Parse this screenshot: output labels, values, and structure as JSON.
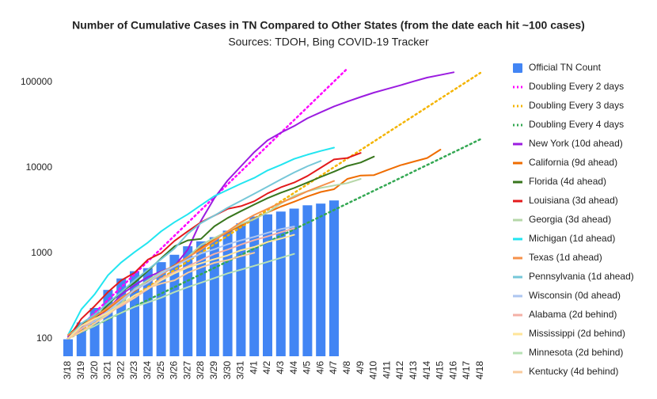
{
  "chart_data": {
    "type": "combo",
    "title": "Number of Cumulative Cases in TN Compared to Other States (from the date each hit ~100 cases)",
    "subtitle": "Sources: TDOH, Bing COVID-19 Tracker",
    "categories": [
      "3/18",
      "3/19",
      "3/20",
      "3/21",
      "3/22",
      "3/23",
      "3/24",
      "3/25",
      "3/26",
      "3/27",
      "3/28",
      "3/29",
      "3/30",
      "3/31",
      "4/1",
      "4/2",
      "4/3",
      "4/4",
      "4/5",
      "4/6",
      "4/7",
      "4/8",
      "4/9",
      "4/10",
      "4/11",
      "4/12",
      "4/13",
      "4/14",
      "4/15",
      "4/16",
      "4/17",
      "4/18"
    ],
    "ylim": [
      62,
      150000
    ],
    "yticks": [
      100,
      1000,
      10000,
      100000
    ],
    "log_scale": true,
    "grid": false,
    "legend": "right",
    "series": [
      {
        "name": "Official TN Count",
        "type": "bar",
        "color": "#4285f4",
        "values": [
          98,
          154,
          228,
          371,
          505,
          615,
          667,
          784,
          957,
          1203,
          1373,
          1537,
          1834,
          2239,
          2683,
          2845,
          3067,
          3321,
          3633,
          3802,
          4138,
          null,
          null,
          null,
          null,
          null,
          null,
          null,
          null,
          null,
          null,
          null
        ]
      },
      {
        "name": "Doubling Every 2 days",
        "type": "line",
        "dotted": true,
        "color": "#ff00ff",
        "values": [
          100,
          141,
          200,
          283,
          400,
          566,
          800,
          1131,
          1600,
          2263,
          3200,
          4525,
          6400,
          9051,
          12800,
          18102,
          25600,
          36204,
          51200,
          72408,
          102400,
          144815,
          null,
          null,
          null,
          null,
          null,
          null,
          null,
          null,
          null,
          null
        ]
      },
      {
        "name": "Doubling Every 3 days",
        "type": "line",
        "dotted": true,
        "color": "#f4b400",
        "values": [
          100,
          126,
          159,
          200,
          252,
          317,
          400,
          504,
          635,
          800,
          1008,
          1270,
          1600,
          2016,
          2540,
          3200,
          4032,
          5080,
          6400,
          8063,
          10159,
          12800,
          16127,
          20319,
          25600,
          32254,
          40637,
          51200,
          64508,
          81275,
          102400,
          129016
        ]
      },
      {
        "name": "Doubling Every 4 days",
        "type": "line",
        "dotted": true,
        "color": "#34a853",
        "values": [
          100,
          119,
          141,
          168,
          200,
          238,
          283,
          336,
          400,
          476,
          566,
          673,
          800,
          951,
          1131,
          1345,
          1600,
          1903,
          2263,
          2691,
          3200,
          3805,
          4525,
          5382,
          6400,
          7611,
          9051,
          10764,
          12800,
          15222,
          18102,
          21527
        ]
      },
      {
        "name": "New York (10d ahead)",
        "type": "line",
        "color": "#9b1ce0",
        "values": [
          105,
          142,
          173,
          220,
          328,
          421,
          525,
          611,
          700,
          1100,
          2400,
          4400,
          7100,
          10400,
          15200,
          20900,
          25700,
          30800,
          37900,
          44600,
          52300,
          59500,
          67300,
          75800,
          83700,
          92400,
          102800,
          113700,
          122000,
          131000,
          null,
          null
        ]
      },
      {
        "name": "California (9d ahead)",
        "type": "line",
        "color": "#ef6c00",
        "values": [
          100,
          140,
          180,
          220,
          290,
          360,
          460,
          590,
          720,
          900,
          1150,
          1450,
          1750,
          2100,
          2550,
          3000,
          3500,
          4000,
          4600,
          5200,
          5600,
          7400,
          8100,
          8200,
          9400,
          10700,
          11800,
          13000,
          16300,
          null,
          null,
          null
        ]
      },
      {
        "name": "Florida (4d ahead)",
        "type": "line",
        "color": "#38761d",
        "values": [
          110,
          150,
          170,
          250,
          350,
          450,
          620,
          870,
          1200,
          1410,
          1470,
          2060,
          2580,
          3100,
          3700,
          4400,
          5100,
          5800,
          6700,
          7800,
          9000,
          10500,
          11500,
          13500,
          null,
          null,
          null,
          null,
          null,
          null,
          null,
          null
        ]
      },
      {
        "name": "Louisiana (3d ahead)",
        "type": "line",
        "color": "#e31a1c",
        "values": [
          100,
          170,
          240,
          350,
          480,
          590,
          840,
          1000,
          1390,
          1800,
          2300,
          2750,
          3300,
          3550,
          4050,
          5000,
          5900,
          6700,
          8000,
          10000,
          12500,
          13000,
          14900,
          null,
          null,
          null,
          null,
          null,
          null,
          null,
          null,
          null
        ]
      },
      {
        "name": "Georgia (3d ahead)",
        "type": "line",
        "color": "#b6d7a8",
        "values": [
          100,
          120,
          150,
          200,
          260,
          380,
          480,
          600,
          700,
          900,
          1250,
          1500,
          1800,
          2200,
          2500,
          3000,
          3800,
          4700,
          5300,
          5800,
          6200,
          6600,
          7400,
          null,
          null,
          null,
          null,
          null,
          null,
          null,
          null,
          null
        ]
      },
      {
        "name": "Michigan (1d ahead)",
        "type": "line",
        "color": "#22e5f0",
        "values": [
          110,
          220,
          330,
          550,
          780,
          1030,
          1330,
          1800,
          2300,
          2850,
          3650,
          4650,
          5500,
          6500,
          7600,
          9300,
          10800,
          12700,
          14200,
          15700,
          17200,
          null,
          null,
          null,
          null,
          null,
          null,
          null,
          null,
          null,
          null,
          null
        ]
      },
      {
        "name": "Texas (1d ahead)",
        "type": "line",
        "color": "#f6914a",
        "values": [
          110,
          140,
          180,
          230,
          300,
          370,
          450,
          560,
          700,
          900,
          1100,
          1400,
          1800,
          2300,
          2800,
          3300,
          3900,
          4500,
          5300,
          6100,
          7000,
          null,
          null,
          null,
          null,
          null,
          null,
          null,
          null,
          null,
          null,
          null
        ]
      },
      {
        "name": "Pennsylvania (1d ahead)",
        "type": "line",
        "color": "#76c7d8",
        "values": [
          100,
          150,
          190,
          260,
          350,
          480,
          640,
          850,
          1130,
          1690,
          2250,
          2750,
          3400,
          4100,
          4950,
          6000,
          7300,
          8800,
          10400,
          12000,
          null,
          null,
          null,
          null,
          null,
          null,
          null,
          null,
          null,
          null,
          null,
          null
        ]
      },
      {
        "name": "Wisconsin (0d ahead)",
        "type": "line",
        "color": "#aec6f0",
        "values": [
          100,
          130,
          160,
          210,
          280,
          370,
          450,
          580,
          700,
          840,
          990,
          1110,
          1270,
          1410,
          1550,
          1730,
          1910,
          2050,
          null,
          null,
          null,
          null,
          null,
          null,
          null,
          null,
          null,
          null,
          null,
          null,
          null,
          null
        ]
      },
      {
        "name": "Alabama (2d behind)",
        "type": "line",
        "color": "#f4b0a6",
        "values": [
          100,
          130,
          170,
          200,
          240,
          300,
          380,
          500,
          600,
          700,
          830,
          980,
          1100,
          1260,
          1420,
          1570,
          1760,
          1950,
          null,
          null,
          null,
          null,
          null,
          null,
          null,
          null,
          null,
          null,
          null,
          null,
          null,
          null
        ]
      },
      {
        "name": "Mississippi (2d behind)",
        "type": "line",
        "color": "#ffe599",
        "values": [
          100,
          140,
          170,
          200,
          250,
          320,
          380,
          480,
          580,
          680,
          760,
          850,
          940,
          1080,
          1180,
          1350,
          1480,
          1640,
          null,
          null,
          null,
          null,
          null,
          null,
          null,
          null,
          null,
          null,
          null,
          null,
          null,
          null
        ]
      },
      {
        "name": "Minnesota (2d behind)",
        "type": "line",
        "color": "#b7e1b5",
        "values": [
          100,
          120,
          140,
          170,
          200,
          235,
          265,
          300,
          350,
          400,
          450,
          510,
          580,
          640,
          710,
          790,
          880,
          980,
          null,
          null,
          null,
          null,
          null,
          null,
          null,
          null,
          null,
          null,
          null,
          null,
          null,
          null
        ]
      },
      {
        "name": "Kentucky (4d behind)",
        "type": "line",
        "color": "#f9cb9c",
        "values": [
          100,
          120,
          150,
          190,
          250,
          300,
          390,
          440,
          480,
          590,
          680,
          770,
          830,
          920,
          1010,
          null,
          null,
          null,
          null,
          null,
          null,
          null,
          null,
          null,
          null,
          null,
          null,
          null,
          null,
          null,
          null,
          null
        ]
      }
    ]
  }
}
